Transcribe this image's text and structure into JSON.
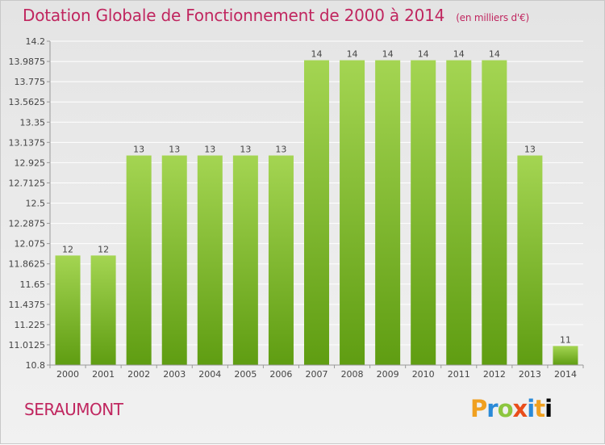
{
  "header": {
    "title": "Dotation Globale de Fonctionnement de 2000 à 2014",
    "unit": "(en milliers d'€)"
  },
  "commune": "SERAUMONT",
  "logo": [
    "P",
    "r",
    "o",
    "x",
    "i",
    "t",
    "i"
  ],
  "colors": {
    "bar_top": "#a4d552",
    "bar_bottom": "#5f9d12",
    "title": "#c0265f"
  },
  "chart_data": {
    "type": "bar",
    "title": "Dotation Globale de Fonctionnement de 2000 à 2014",
    "subtitle": "(en milliers d'€)",
    "xlabel": "",
    "ylabel": "",
    "categories": [
      "2000",
      "2001",
      "2002",
      "2003",
      "2004",
      "2005",
      "2006",
      "2007",
      "2008",
      "2009",
      "2010",
      "2011",
      "2012",
      "2013",
      "2014"
    ],
    "values": [
      12,
      12,
      13,
      13,
      13,
      13,
      13,
      14,
      14,
      14,
      14,
      14,
      14,
      13,
      11
    ],
    "rendered_values": [
      11.95,
      11.95,
      13.0,
      13.0,
      13.0,
      13.0,
      13.0,
      14.0,
      14.0,
      14.0,
      14.0,
      14.0,
      14.0,
      13.0,
      11.0
    ],
    "data_labels": [
      "12",
      "12",
      "13",
      "13",
      "13",
      "13",
      "13",
      "14",
      "14",
      "14",
      "14",
      "14",
      "14",
      "13",
      "11"
    ],
    "yticks": [
      "10.8",
      "11.0125",
      "11.225",
      "11.4375",
      "11.65",
      "11.8625",
      "12.075",
      "12.2875",
      "12.5",
      "12.7125",
      "12.925",
      "13.1375",
      "13.35",
      "13.5625",
      "13.775",
      "13.9875",
      "14.2"
    ],
    "ylim": [
      10.8,
      14.2
    ],
    "grid": true,
    "legend": "none"
  }
}
